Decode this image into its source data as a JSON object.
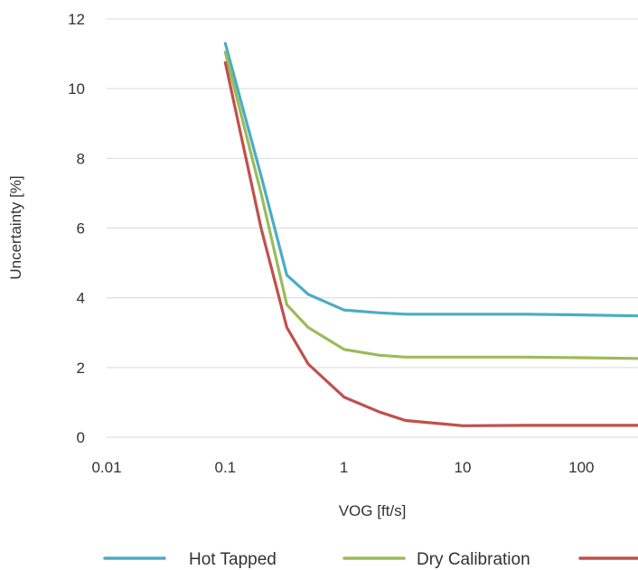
{
  "chart_data": {
    "type": "line",
    "xlabel": "VOG [ft/s]",
    "ylabel": "Uncertainty [%]",
    "x_scale": "log",
    "xlim": [
      0.01,
      300
    ],
    "ylim": [
      0,
      12
    ],
    "x_ticks": [
      0.01,
      0.1,
      1,
      10,
      100
    ],
    "x_tick_labels": [
      "0.01",
      "0.1",
      "1",
      "10",
      "100"
    ],
    "y_ticks": [
      0,
      2,
      4,
      6,
      8,
      10,
      12
    ],
    "y_tick_labels": [
      "0",
      "2",
      "4",
      "6",
      "8",
      "10",
      "12"
    ],
    "grid": "horizontal",
    "legend_position": "bottom",
    "series": [
      {
        "name": "Hot Tapped",
        "color": "#4bacc6",
        "x": [
          0.1,
          0.2,
          0.33,
          0.5,
          1,
          2,
          3.3,
          10,
          33,
          100,
          300
        ],
        "y": [
          11.3,
          7.5,
          4.65,
          4.1,
          3.65,
          3.57,
          3.53,
          3.53,
          3.53,
          3.51,
          3.48
        ]
      },
      {
        "name": "Dry Calibration",
        "color": "#9bbb59",
        "x": [
          0.1,
          0.2,
          0.33,
          0.5,
          1,
          2,
          3.3,
          10,
          33,
          100,
          300
        ],
        "y": [
          11.05,
          7.0,
          3.8,
          3.15,
          2.52,
          2.35,
          2.3,
          2.3,
          2.3,
          2.28,
          2.26
        ]
      },
      {
        "name": "",
        "color": "#c0504d",
        "x": [
          0.1,
          0.2,
          0.33,
          0.5,
          1,
          2,
          3.3,
          10,
          33,
          100,
          300
        ],
        "y": [
          10.75,
          6.0,
          3.15,
          2.1,
          1.15,
          0.72,
          0.48,
          0.33,
          0.34,
          0.34,
          0.34
        ]
      }
    ]
  }
}
